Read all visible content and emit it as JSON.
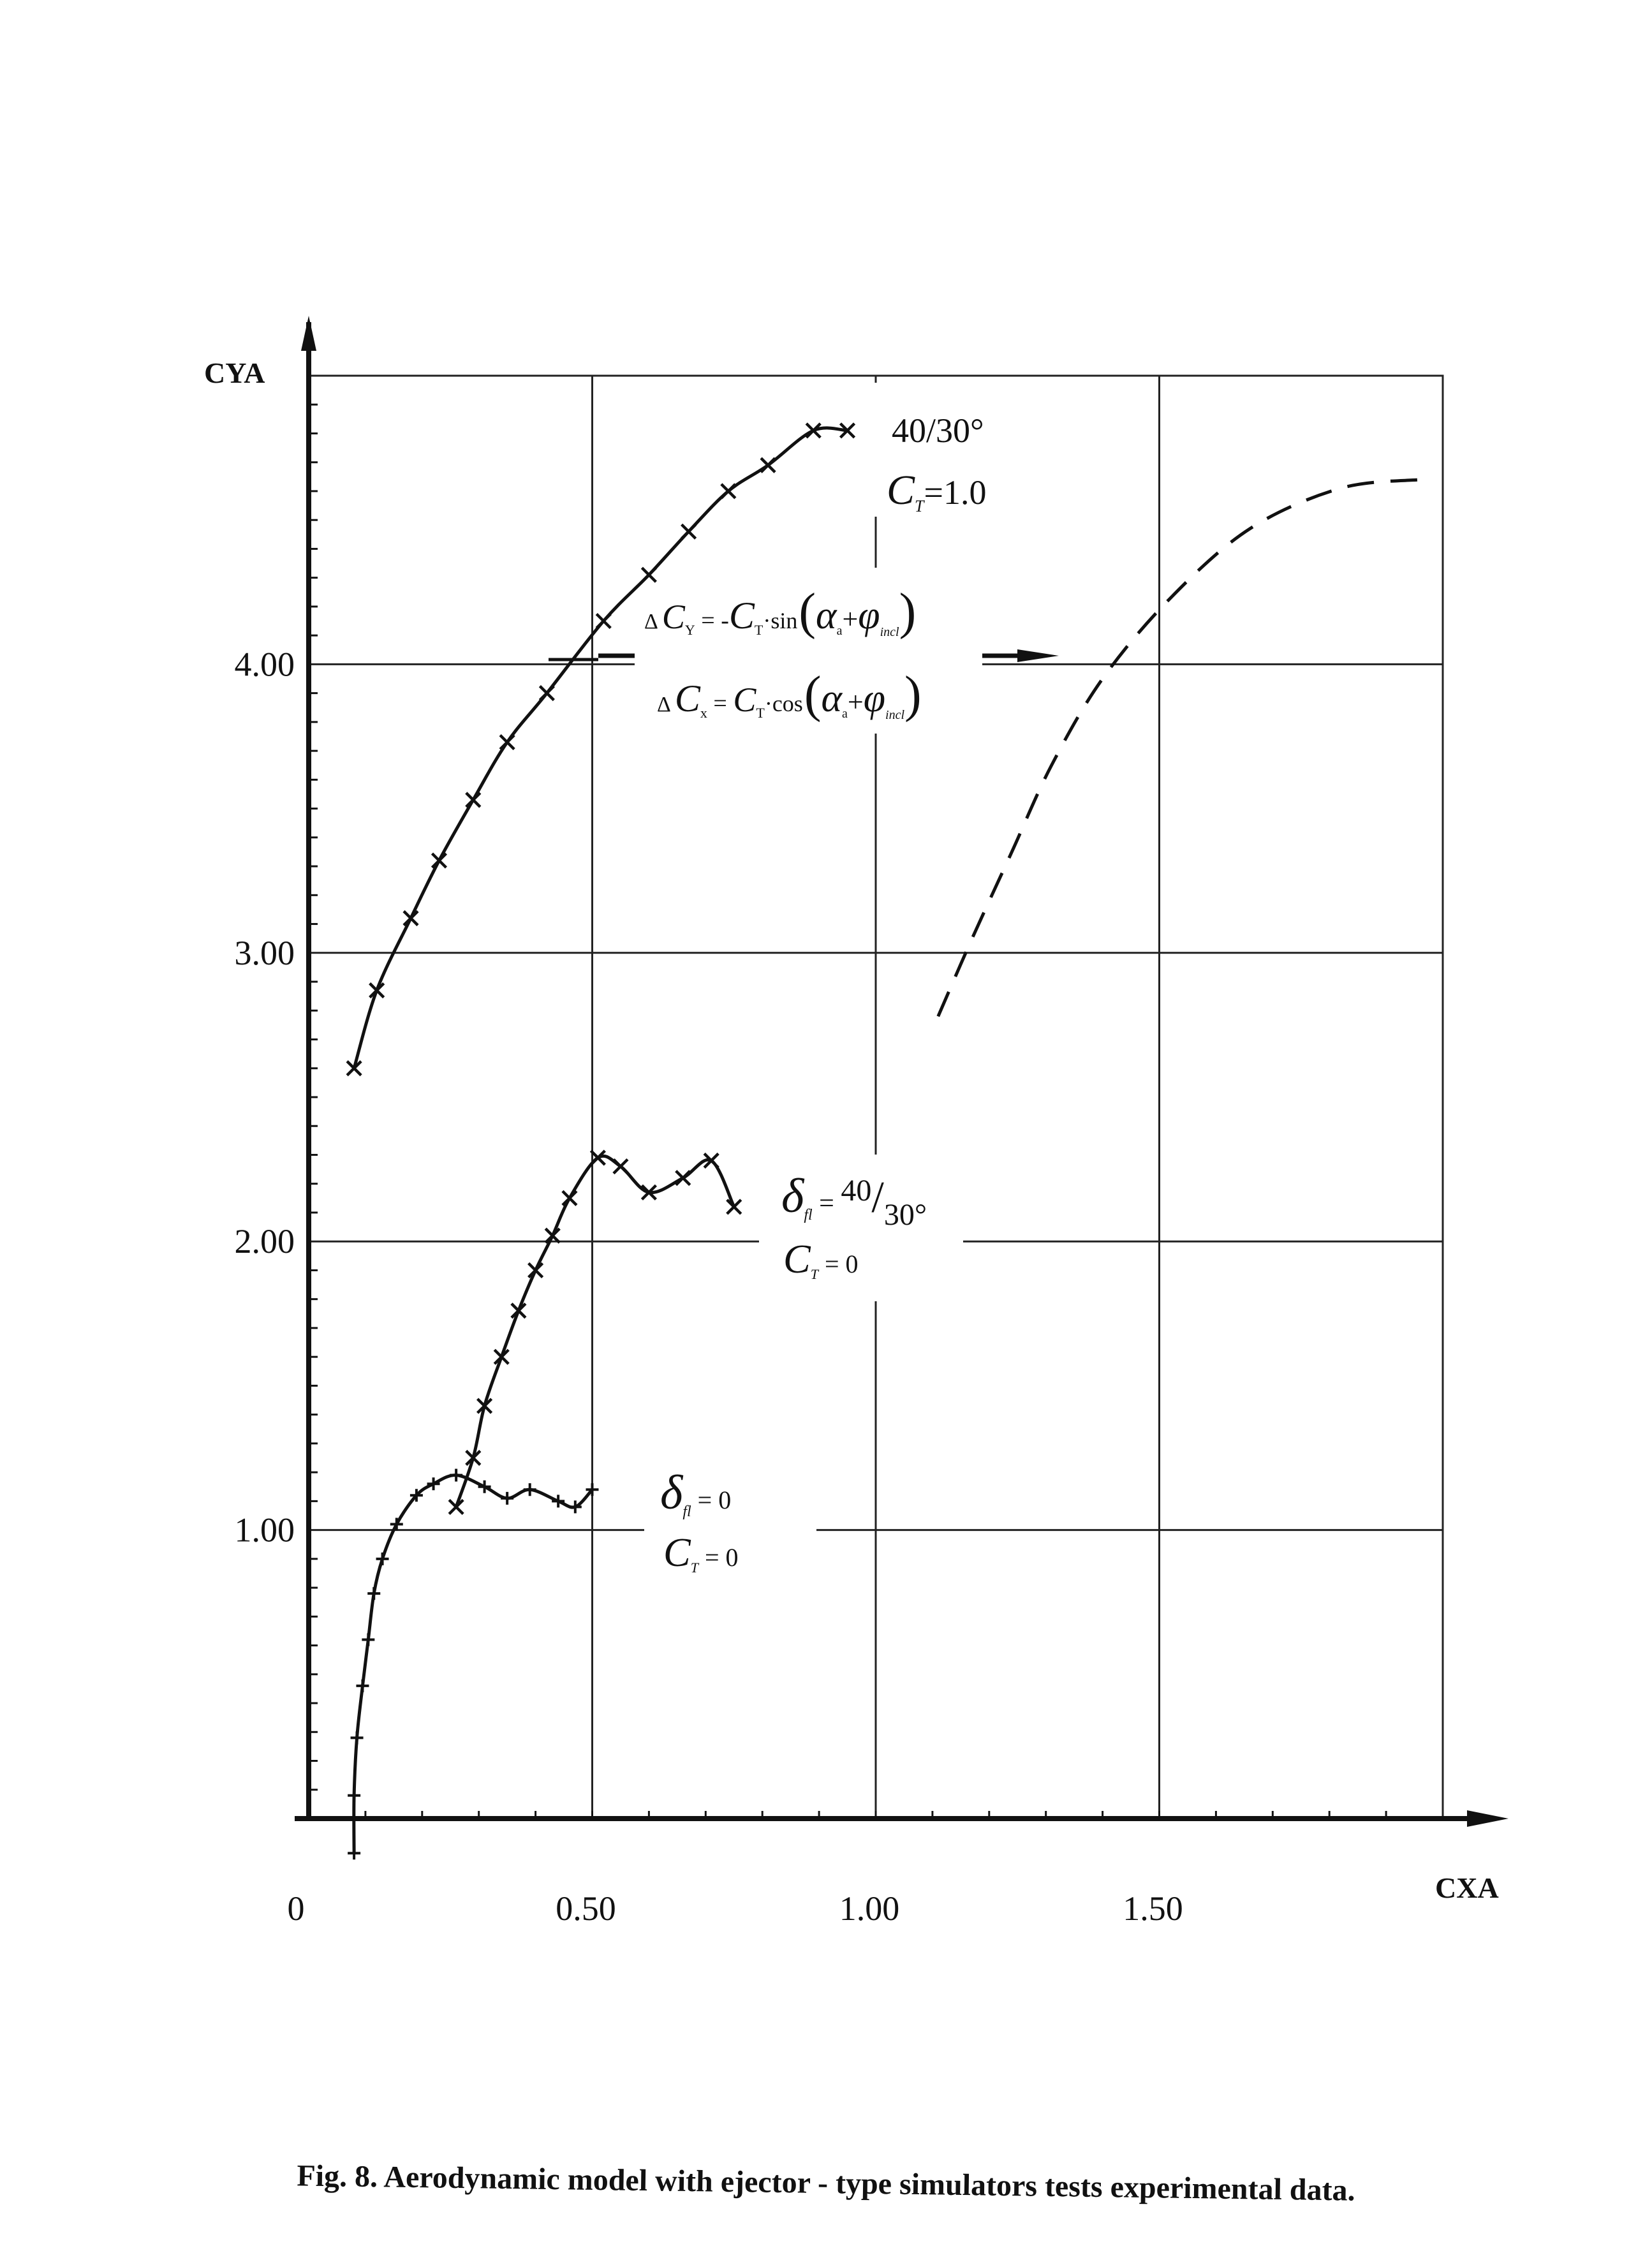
{
  "chart_data": {
    "type": "line",
    "xlabel": "CXA",
    "ylabel": "CYA",
    "xlim": [
      0,
      2.0
    ],
    "ylim": [
      0,
      5.0
    ],
    "x_ticks": [
      {
        "value": 0,
        "label": "0"
      },
      {
        "value": 0.5,
        "label": "0.50"
      },
      {
        "value": 1.0,
        "label": "1.00"
      },
      {
        "value": 1.5,
        "label": "1.50"
      }
    ],
    "y_ticks": [
      {
        "value": 1.0,
        "label": "1.00"
      },
      {
        "value": 2.0,
        "label": "2.00"
      },
      {
        "value": 3.0,
        "label": "3.00"
      },
      {
        "value": 4.0,
        "label": "4.00"
      }
    ],
    "grid": true,
    "series": [
      {
        "style": "solid-x-markers",
        "points": [
          [
            0.08,
            2.6
          ],
          [
            0.12,
            2.87
          ],
          [
            0.18,
            3.12
          ],
          [
            0.23,
            3.32
          ],
          [
            0.29,
            3.53
          ],
          [
            0.35,
            3.73
          ],
          [
            0.42,
            3.9
          ],
          [
            0.52,
            4.15
          ],
          [
            0.6,
            4.31
          ],
          [
            0.67,
            4.46
          ],
          [
            0.74,
            4.6
          ],
          [
            0.81,
            4.69
          ],
          [
            0.89,
            4.81
          ],
          [
            0.95,
            4.81
          ]
        ]
      },
      {
        "style": "dashed",
        "points": [
          [
            1.11,
            2.78
          ],
          [
            1.17,
            3.05
          ],
          [
            1.24,
            3.35
          ],
          [
            1.31,
            3.65
          ],
          [
            1.4,
            3.95
          ],
          [
            1.52,
            4.23
          ],
          [
            1.66,
            4.47
          ],
          [
            1.82,
            4.61
          ],
          [
            1.96,
            4.64
          ]
        ]
      },
      {
        "style": "solid-x-markers",
        "points": [
          [
            0.26,
            1.08
          ],
          [
            0.29,
            1.25
          ],
          [
            0.31,
            1.43
          ],
          [
            0.34,
            1.6
          ],
          [
            0.37,
            1.76
          ],
          [
            0.4,
            1.9
          ],
          [
            0.43,
            2.02
          ],
          [
            0.46,
            2.15
          ],
          [
            0.51,
            2.29
          ],
          [
            0.55,
            2.26
          ],
          [
            0.6,
            2.17
          ],
          [
            0.66,
            2.22
          ],
          [
            0.71,
            2.28
          ],
          [
            0.75,
            2.12
          ]
        ]
      },
      {
        "style": "solid-plus-markers",
        "points": [
          [
            0.08,
            -0.12
          ],
          [
            0.08,
            0.08
          ],
          [
            0.085,
            0.28
          ],
          [
            0.095,
            0.46
          ],
          [
            0.105,
            0.62
          ],
          [
            0.115,
            0.78
          ],
          [
            0.13,
            0.9
          ],
          [
            0.155,
            1.02
          ],
          [
            0.19,
            1.12
          ],
          [
            0.22,
            1.16
          ],
          [
            0.26,
            1.19
          ],
          [
            0.31,
            1.15
          ],
          [
            0.35,
            1.11
          ],
          [
            0.39,
            1.14
          ],
          [
            0.44,
            1.1
          ],
          [
            0.47,
            1.08
          ],
          [
            0.5,
            1.14
          ]
        ]
      }
    ],
    "annotations": {
      "top_condition_line1": "40/30°",
      "top_condition_line2_sym": "C",
      "top_condition_line2_sub": "T",
      "top_condition_line2_rest": "=1.0",
      "formula_y_delta": "Δ",
      "formula_y_c": "C",
      "formula_y_sub": "Y",
      "formula_y_rhs": " = -",
      "formula_y_ct": "C",
      "formula_y_ct_sub": "T",
      "formula_y_func": "·sin",
      "formula_x_delta": "Δ",
      "formula_x_c": "C",
      "formula_x_sub": "x",
      "formula_x_rhs": " = ",
      "formula_x_ct": "C",
      "formula_x_ct_sub": "T",
      "formula_x_func": "·cos",
      "formula_alpha": "α",
      "formula_alpha_sub": "a",
      "formula_plus": "+",
      "formula_phi": "φ",
      "formula_phi_sub": "incl",
      "mid_delta": "δ",
      "mid_delta_sub": "fl",
      "mid_eq": " = ",
      "mid_num": "40",
      "mid_den": "30°",
      "mid_ct": "C",
      "mid_ct_sub": "T",
      "mid_ct_val": " = 0",
      "low_delta": "δ",
      "low_delta_sub": "fl",
      "low_delta_val": " = 0",
      "low_ct": "C",
      "low_ct_sub": "T",
      "low_ct_val": " = 0"
    }
  },
  "caption": "Fig. 8. Aerodynamic model with ejector - type simulators tests experimental data."
}
